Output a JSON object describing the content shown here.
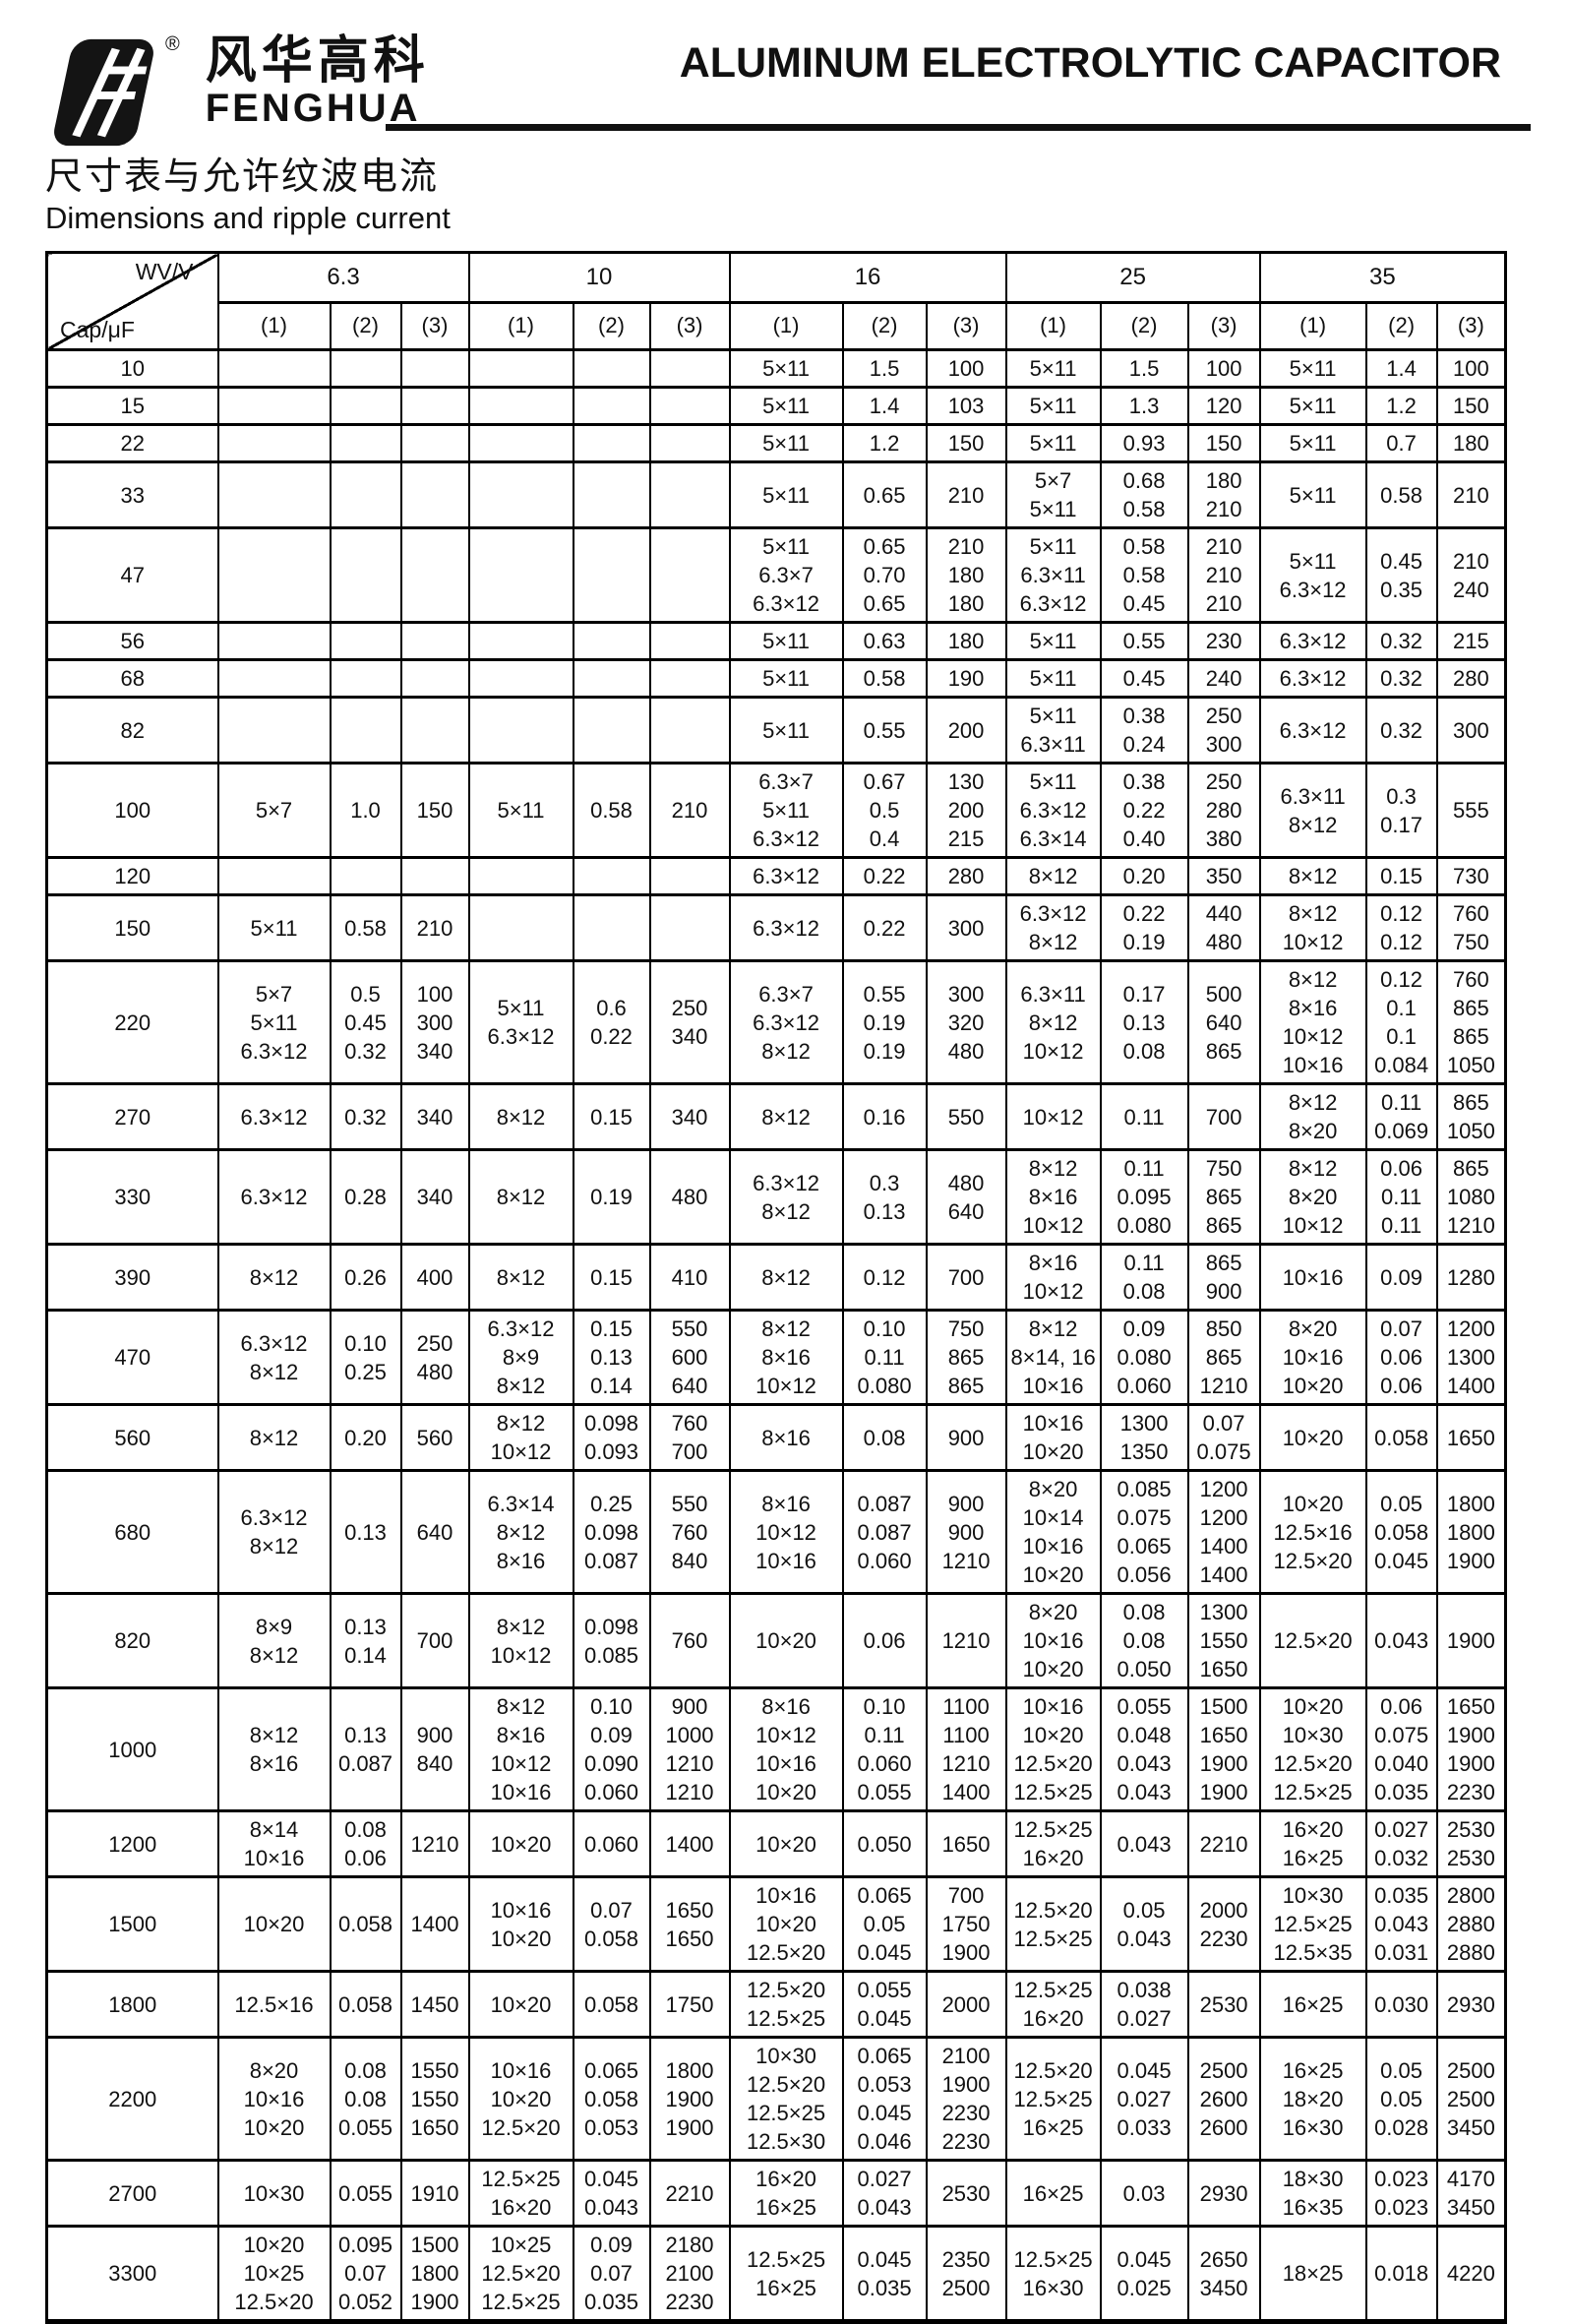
{
  "header": {
    "brand_cn": "风华高科",
    "brand_en": "FENGHUA",
    "registered_mark": "®",
    "doc_title": "ALUMINUM ELECTROLYTIC CAPACITOR"
  },
  "section": {
    "title_cn": "尺寸表与允许纹波电流",
    "title_en": "Dimensions and ripple current"
  },
  "colors": {
    "text": "#111111",
    "border": "#000000",
    "background": "#ffffff"
  },
  "table": {
    "corner_top": "WV/V",
    "corner_bottom": "Cap/μF",
    "voltages": [
      "6.3",
      "10",
      "16",
      "25",
      "35"
    ],
    "subcols": [
      "(1)",
      "(2)",
      "(3)"
    ],
    "rows": [
      {
        "cap": "10",
        "groups": [
          [
            "",
            "",
            ""
          ],
          [
            "",
            "",
            ""
          ],
          [
            "5×11",
            "1.5",
            "100"
          ],
          [
            "5×11",
            "1.5",
            "100"
          ],
          [
            "5×11",
            "1.4",
            "100"
          ]
        ]
      },
      {
        "cap": "15",
        "groups": [
          [
            "",
            "",
            ""
          ],
          [
            "",
            "",
            ""
          ],
          [
            "5×11",
            "1.4",
            "103"
          ],
          [
            "5×11",
            "1.3",
            "120"
          ],
          [
            "5×11",
            "1.2",
            "150"
          ]
        ]
      },
      {
        "cap": "22",
        "groups": [
          [
            "",
            "",
            ""
          ],
          [
            "",
            "",
            ""
          ],
          [
            "5×11",
            "1.2",
            "150"
          ],
          [
            "5×11",
            "0.93",
            "150"
          ],
          [
            "5×11",
            "0.7",
            "180"
          ]
        ]
      },
      {
        "cap": "33",
        "groups": [
          [
            "",
            "",
            ""
          ],
          [
            "",
            "",
            ""
          ],
          [
            "5×11",
            "0.65",
            "210"
          ],
          [
            "5×7\n5×11",
            "0.68\n0.58",
            "180\n210"
          ],
          [
            "5×11",
            "0.58",
            "210"
          ]
        ]
      },
      {
        "cap": "47",
        "groups": [
          [
            "",
            "",
            ""
          ],
          [
            "",
            "",
            ""
          ],
          [
            "5×11\n6.3×7\n6.3×12",
            "0.65\n0.70\n0.65",
            "210\n180\n180"
          ],
          [
            "5×11\n6.3×11\n6.3×12",
            "0.58\n0.58\n0.45",
            "210\n210\n210"
          ],
          [
            "5×11\n6.3×12",
            "0.45\n0.35",
            "210\n240"
          ]
        ]
      },
      {
        "cap": "56",
        "groups": [
          [
            "",
            "",
            ""
          ],
          [
            "",
            "",
            ""
          ],
          [
            "5×11",
            "0.63",
            "180"
          ],
          [
            "5×11",
            "0.55",
            "230"
          ],
          [
            "6.3×12",
            "0.32",
            "215"
          ]
        ]
      },
      {
        "cap": "68",
        "groups": [
          [
            "",
            "",
            ""
          ],
          [
            "",
            "",
            ""
          ],
          [
            "5×11",
            "0.58",
            "190"
          ],
          [
            "5×11",
            "0.45",
            "240"
          ],
          [
            "6.3×12",
            "0.32",
            "280"
          ]
        ]
      },
      {
        "cap": "82",
        "groups": [
          [
            "",
            "",
            ""
          ],
          [
            "",
            "",
            ""
          ],
          [
            "5×11",
            "0.55",
            "200"
          ],
          [
            "5×11\n6.3×11",
            "0.38\n0.24",
            "250\n300"
          ],
          [
            "6.3×12",
            "0.32",
            "300"
          ]
        ]
      },
      {
        "cap": "100",
        "groups": [
          [
            "5×7",
            "1.0",
            "150"
          ],
          [
            "5×11",
            "0.58",
            "210"
          ],
          [
            "6.3×7\n5×11\n6.3×12",
            "0.67\n0.5\n0.4",
            "130\n200\n215"
          ],
          [
            "5×11\n6.3×12\n6.3×14",
            "0.38\n0.22\n0.40",
            "250\n280\n380"
          ],
          [
            "6.3×11\n8×12",
            "0.3\n0.17",
            "555"
          ]
        ]
      },
      {
        "cap": "120",
        "groups": [
          [
            "",
            "",
            ""
          ],
          [
            "",
            "",
            ""
          ],
          [
            "6.3×12",
            "0.22",
            "280"
          ],
          [
            "8×12",
            "0.20",
            "350"
          ],
          [
            "8×12",
            "0.15",
            "730"
          ]
        ]
      },
      {
        "cap": "150",
        "groups": [
          [
            "5×11",
            "0.58",
            "210"
          ],
          [
            "",
            "",
            ""
          ],
          [
            "6.3×12",
            "0.22",
            "300"
          ],
          [
            "6.3×12\n8×12",
            "0.22\n0.19",
            "440\n480"
          ],
          [
            "8×12\n10×12",
            "0.12\n0.12",
            "760\n750"
          ]
        ]
      },
      {
        "cap": "220",
        "groups": [
          [
            "5×7\n5×11\n6.3×12",
            "0.5\n0.45\n0.32",
            "100\n300\n340"
          ],
          [
            "5×11\n6.3×12",
            "0.6\n0.22",
            "250\n340"
          ],
          [
            "6.3×7\n6.3×12\n8×12",
            "0.55\n0.19\n0.19",
            "300\n320\n480"
          ],
          [
            "6.3×11\n8×12\n10×12",
            "0.17\n0.13\n0.08",
            "500\n640\n865"
          ],
          [
            "8×12\n8×16\n10×12\n10×16",
            "0.12\n0.1\n0.1\n0.084",
            "760\n865\n865\n1050"
          ]
        ]
      },
      {
        "cap": "270",
        "groups": [
          [
            "6.3×12",
            "0.32",
            "340"
          ],
          [
            "8×12",
            "0.15",
            "340"
          ],
          [
            "8×12",
            "0.16",
            "550"
          ],
          [
            "10×12",
            "0.11",
            "700"
          ],
          [
            "8×12\n8×20",
            "0.11\n0.069",
            "865\n1050"
          ]
        ]
      },
      {
        "cap": "330",
        "groups": [
          [
            "6.3×12",
            "0.28",
            "340"
          ],
          [
            "8×12",
            "0.19",
            "480"
          ],
          [
            "6.3×12\n8×12",
            "0.3\n0.13",
            "480\n640"
          ],
          [
            "8×12\n8×16\n10×12",
            "0.11\n0.095\n0.080",
            "750\n865\n865"
          ],
          [
            "8×12\n8×20\n10×12",
            "0.06\n0.11\n0.11",
            "865\n1080\n1210"
          ]
        ]
      },
      {
        "cap": "390",
        "groups": [
          [
            "8×12",
            "0.26",
            "400"
          ],
          [
            "8×12",
            "0.15",
            "410"
          ],
          [
            "8×12",
            "0.12",
            "700"
          ],
          [
            "8×16\n10×12",
            "0.11\n0.08",
            "865\n900"
          ],
          [
            "10×16",
            "0.09",
            "1280"
          ]
        ]
      },
      {
        "cap": "470",
        "groups": [
          [
            "6.3×12\n8×12",
            "0.10\n0.25",
            "250\n480"
          ],
          [
            "6.3×12\n8×9\n8×12",
            "0.15\n0.13\n0.14",
            "550\n600\n640"
          ],
          [
            "8×12\n8×16\n10×12",
            "0.10\n0.11\n0.080",
            "750\n865\n865"
          ],
          [
            "8×12\n8×14, 16\n10×16",
            "0.09\n0.080\n0.060",
            "850\n865\n1210"
          ],
          [
            "8×20\n10×16\n10×20",
            "0.07\n0.06\n0.06",
            "1200\n1300\n1400"
          ]
        ]
      },
      {
        "cap": "560",
        "groups": [
          [
            "8×12",
            "0.20",
            "560"
          ],
          [
            "8×12\n10×12",
            "0.098\n0.093",
            "760\n700"
          ],
          [
            "8×16",
            "0.08",
            "900"
          ],
          [
            "10×16\n10×20",
            "1300\n1350",
            "0.07\n0.075"
          ],
          [
            "10×20",
            "0.058",
            "1650"
          ]
        ]
      },
      {
        "cap": "680",
        "groups": [
          [
            "6.3×12\n8×12",
            "0.13",
            "640"
          ],
          [
            "6.3×14\n8×12\n8×16",
            "0.25\n0.098\n0.087",
            "550\n760\n840"
          ],
          [
            "8×16\n10×12\n10×16",
            "0.087\n0.087\n0.060",
            "900\n900\n1210"
          ],
          [
            "8×20\n10×14\n10×16\n10×20",
            "0.085\n0.075\n0.065\n0.056",
            "1200\n1200\n1400\n1400"
          ],
          [
            "10×20\n12.5×16\n12.5×20",
            "0.05\n0.058\n0.045",
            "1800\n1800\n1900"
          ]
        ]
      },
      {
        "cap": "820",
        "groups": [
          [
            "8×9\n8×12",
            "0.13\n0.14",
            "700"
          ],
          [
            "8×12\n10×12",
            "0.098\n0.085",
            "760"
          ],
          [
            "10×20",
            "0.06",
            "1210"
          ],
          [
            "8×20\n10×16\n10×20",
            "0.08\n0.08\n0.050",
            "1300\n1550\n1650"
          ],
          [
            "12.5×20",
            "0.043",
            "1900"
          ]
        ]
      },
      {
        "cap": "1000",
        "groups": [
          [
            "8×12\n8×16",
            "0.13\n0.087",
            "900\n840"
          ],
          [
            "8×12\n8×16\n10×12\n10×16",
            "0.10\n0.09\n0.090\n0.060",
            "900\n1000\n1210\n1210"
          ],
          [
            "8×16\n10×12\n10×16\n10×20",
            "0.10\n0.11\n0.060\n0.055",
            "1100\n1100\n1210\n1400"
          ],
          [
            "10×16\n10×20\n12.5×20\n12.5×25",
            "0.055\n0.048\n0.043\n0.043",
            "1500\n1650\n1900\n1900"
          ],
          [
            "10×20\n10×30\n12.5×20\n12.5×25",
            "0.06\n0.075\n0.040\n0.035",
            "1650\n1900\n1900\n2230"
          ]
        ]
      },
      {
        "cap": "1200",
        "groups": [
          [
            "8×14\n10×16",
            "0.08\n0.06",
            "1210"
          ],
          [
            "10×20",
            "0.060",
            "1400"
          ],
          [
            "10×20",
            "0.050",
            "1650"
          ],
          [
            "12.5×25\n16×20",
            "0.043",
            "2210"
          ],
          [
            "16×20\n16×25",
            "0.027\n0.032",
            "2530\n2530"
          ]
        ]
      },
      {
        "cap": "1500",
        "groups": [
          [
            "10×20",
            "0.058",
            "1400"
          ],
          [
            "10×16\n10×20",
            "0.07\n0.058",
            "1650\n1650"
          ],
          [
            "10×16\n10×20\n12.5×20",
            "0.065\n0.05\n0.045",
            "700\n1750\n1900"
          ],
          [
            "12.5×20\n12.5×25",
            "0.05\n0.043",
            "2000\n2230"
          ],
          [
            "10×30\n12.5×25\n12.5×35",
            "0.035\n0.043\n0.031",
            "2800\n2880\n2880"
          ]
        ]
      },
      {
        "cap": "1800",
        "groups": [
          [
            "12.5×16",
            "0.058",
            "1450"
          ],
          [
            "10×20",
            "0.058",
            "1750"
          ],
          [
            "12.5×20\n12.5×25",
            "0.055\n0.045",
            "2000"
          ],
          [
            "12.5×25\n16×20",
            "0.038\n0.027",
            "2530"
          ],
          [
            "16×25",
            "0.030",
            "2930"
          ]
        ]
      },
      {
        "cap": "2200",
        "groups": [
          [
            "8×20\n10×16\n10×20",
            "0.08\n0.08\n0.055",
            "1550\n1550\n1650"
          ],
          [
            "10×16\n10×20\n12.5×20",
            "0.065\n0.058\n0.053",
            "1800\n1900\n1900"
          ],
          [
            "10×30\n12.5×20\n12.5×25\n12.5×30",
            "0.065\n0.053\n0.045\n0.046",
            "2100\n1900\n2230\n2230"
          ],
          [
            "12.5×20\n12.5×25\n16×25",
            "0.045\n0.027\n0.033",
            "2500\n2600\n2600"
          ],
          [
            "16×25\n18×20\n16×30",
            "0.05\n0.05\n0.028",
            "2500\n2500\n3450"
          ]
        ]
      },
      {
        "cap": "2700",
        "groups": [
          [
            "10×30",
            "0.055",
            "1910"
          ],
          [
            "12.5×25\n16×20",
            "0.045\n0.043",
            "2210"
          ],
          [
            "16×20\n16×25",
            "0.027\n0.043",
            "2530"
          ],
          [
            "16×25",
            "0.03",
            "2930"
          ],
          [
            "18×30\n16×35",
            "0.023\n0.023",
            "4170\n3450"
          ]
        ]
      },
      {
        "cap": "3300",
        "groups": [
          [
            "10×20\n10×25\n12.5×20",
            "0.095\n0.07\n0.052",
            "1500\n1800\n1900"
          ],
          [
            "10×25\n12.5×20\n12.5×25",
            "0.09\n0.07\n0.035",
            "2180\n2100\n2230"
          ],
          [
            "12.5×25\n16×25",
            "0.045\n0.035",
            "2350\n2500"
          ],
          [
            "12.5×25\n16×30",
            "0.045\n0.025",
            "2650\n3450"
          ],
          [
            "18×25",
            "0.018",
            "4220"
          ]
        ]
      }
    ]
  }
}
